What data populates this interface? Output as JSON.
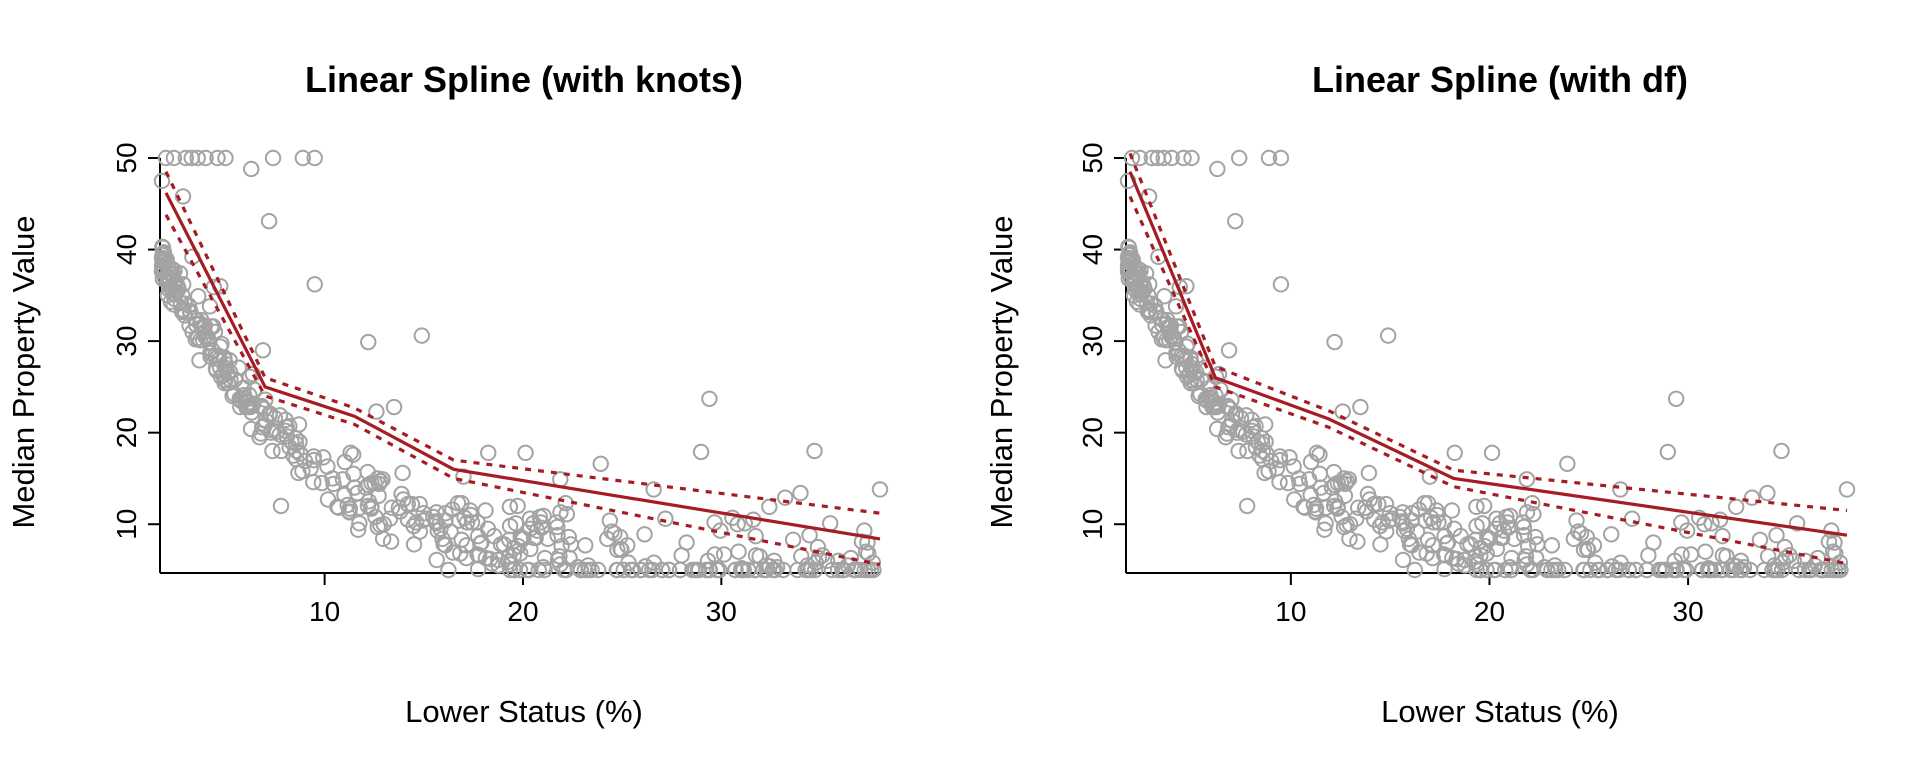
{
  "colors": {
    "points": "#a3a3a3",
    "fit": "#a51c24"
  },
  "chart_data": [
    {
      "type": "scatter",
      "title": "Linear Spline (with knots)",
      "xlabel": "Lower Status (%)",
      "ylabel": "Median Property Value",
      "xlim": [
        1.7,
        38
      ],
      "ylim": [
        5,
        50
      ],
      "x_ticks": [
        10,
        20,
        30
      ],
      "y_ticks": [
        10,
        20,
        30,
        40,
        50
      ],
      "grid": false,
      "series": [
        {
          "role": "points",
          "marker": "open-circle",
          "points": []
        },
        {
          "role": "fit",
          "style": "solid",
          "x": [
            2.0,
            7.0,
            11.5,
            16.5,
            38.0
          ],
          "y": [
            46.2,
            25.0,
            21.8,
            16.0,
            8.4
          ]
        },
        {
          "role": "upper-ci",
          "style": "dashed",
          "x": [
            2.0,
            7.0,
            11.5,
            16.5,
            38.0
          ],
          "y": [
            48.5,
            26.0,
            22.7,
            17.0,
            11.2
          ]
        },
        {
          "role": "lower-ci",
          "style": "dashed",
          "x": [
            2.0,
            7.0,
            11.5,
            16.5,
            38.0
          ],
          "y": [
            43.8,
            24.0,
            20.9,
            15.0,
            5.6
          ]
        }
      ]
    },
    {
      "type": "scatter",
      "title": "Linear Spline (with df)",
      "xlabel": "Lower Status (%)",
      "ylabel": "Median Property Value",
      "xlim": [
        1.7,
        38
      ],
      "ylim": [
        5,
        50
      ],
      "x_ticks": [
        10,
        20,
        30
      ],
      "y_ticks": [
        10,
        20,
        30,
        40,
        50
      ],
      "grid": false,
      "series": [
        {
          "role": "points",
          "marker": "open-circle",
          "points": []
        },
        {
          "role": "fit",
          "style": "solid",
          "x": [
            1.9,
            6.2,
            11.9,
            18.2,
            38.0
          ],
          "y": [
            48.5,
            26.0,
            21.5,
            15.0,
            8.8
          ]
        },
        {
          "role": "upper-ci",
          "style": "dashed",
          "x": [
            1.9,
            6.2,
            11.9,
            18.2,
            38.0
          ],
          "y": [
            50.5,
            27.2,
            22.4,
            15.9,
            11.5
          ]
        },
        {
          "role": "lower-ci",
          "style": "dashed",
          "x": [
            1.9,
            6.2,
            11.9,
            18.2,
            38.0
          ],
          "y": [
            45.8,
            25.0,
            20.6,
            14.1,
            5.7
          ]
        }
      ]
    }
  ]
}
